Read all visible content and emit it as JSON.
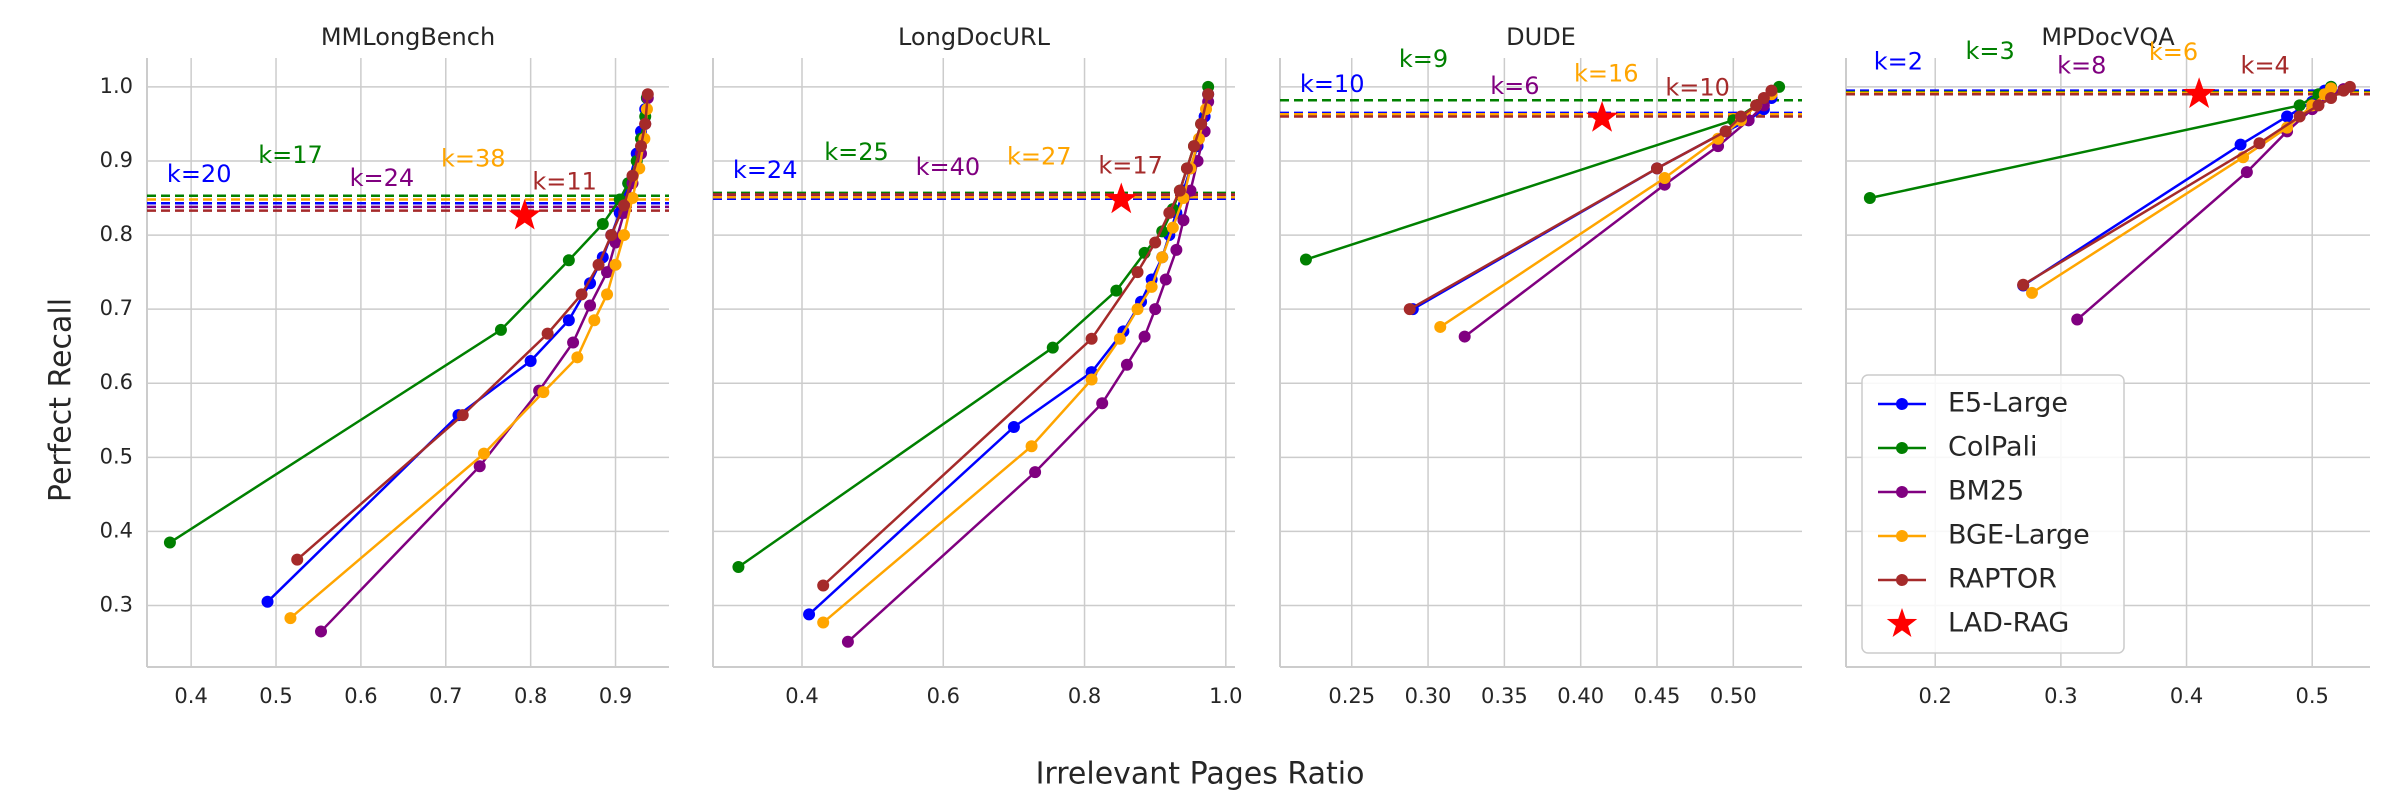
{
  "xlabel": "Irrelevant Pages Ratio",
  "ylabel": "Perfect Recall",
  "chart_data": [
    {
      "type": "line",
      "title": "MMLongBench",
      "xlim": [
        0.348,
        0.963
      ],
      "xticks": [
        0.4,
        0.5,
        0.6,
        0.7,
        0.8,
        0.9
      ],
      "ylim": [
        0.217,
        1.039
      ],
      "yticks": [
        0.3,
        0.4,
        0.5,
        0.6,
        0.7,
        0.8,
        0.9,
        {
          "value": 1,
          "label": "1.0"
        }
      ],
      "grid": true,
      "series": [
        {
          "name": "E5-Large",
          "color": "#0000ff",
          "threshold": 0.843,
          "k_label": "k=20",
          "x": [
            0.49,
            0.715,
            0.8,
            0.845,
            0.87,
            0.885,
            0.895,
            0.905,
            0.915,
            0.925,
            0.93,
            0.935,
            0.937
          ],
          "values": [
            0.305,
            0.557,
            0.63,
            0.685,
            0.735,
            0.77,
            0.8,
            0.83,
            0.87,
            0.91,
            0.94,
            0.97,
            0.985
          ]
        },
        {
          "name": "ColPali",
          "color": "#008000",
          "threshold": 0.853,
          "k_label": "k=17",
          "x": [
            0.375,
            0.765,
            0.845,
            0.885,
            0.905,
            0.915,
            0.925,
            0.93,
            0.935,
            0.937
          ],
          "values": [
            0.385,
            0.672,
            0.766,
            0.815,
            0.848,
            0.87,
            0.9,
            0.93,
            0.96,
            0.985
          ]
        },
        {
          "name": "BM25",
          "color": "#800080",
          "threshold": 0.838,
          "k_label": "k=24",
          "x": [
            0.553,
            0.74,
            0.81,
            0.85,
            0.87,
            0.89,
            0.9,
            0.91,
            0.92,
            0.93,
            0.935,
            0.938
          ],
          "values": [
            0.265,
            0.488,
            0.59,
            0.655,
            0.705,
            0.75,
            0.79,
            0.83,
            0.87,
            0.91,
            0.95,
            0.985
          ]
        },
        {
          "name": "BGE-Large",
          "color": "#ffa500",
          "threshold": 0.848,
          "k_label": "k=38",
          "x": [
            0.517,
            0.745,
            0.815,
            0.855,
            0.875,
            0.89,
            0.9,
            0.91,
            0.92,
            0.928,
            0.934,
            0.937
          ],
          "values": [
            0.283,
            0.505,
            0.588,
            0.635,
            0.685,
            0.72,
            0.76,
            0.8,
            0.85,
            0.89,
            0.93,
            0.97
          ]
        },
        {
          "name": "RAPTOR",
          "color": "#a52a2a",
          "threshold": 0.833,
          "k_label": "k=11",
          "x": [
            0.525,
            0.72,
            0.82,
            0.86,
            0.88,
            0.895,
            0.91,
            0.92,
            0.93,
            0.935,
            0.938
          ],
          "values": [
            0.362,
            0.557,
            0.667,
            0.72,
            0.76,
            0.8,
            0.84,
            0.88,
            0.92,
            0.95,
            0.99
          ]
        },
        {
          "name": "LAD-RAG",
          "color": "#ff0000",
          "marker": "star",
          "x": [
            0.793
          ],
          "values": [
            0.826
          ]
        }
      ]
    },
    {
      "type": "line",
      "title": "LongDocURL",
      "xlim": [
        0.274,
        1.013
      ],
      "xticks": [
        0.4,
        0.6,
        0.8,
        {
          "value": 1,
          "label": "1.0"
        }
      ],
      "ylim": [
        0.217,
        1.039
      ],
      "yticks": [
        0.3,
        0.4,
        0.5,
        0.6,
        0.7,
        0.8,
        0.9,
        {
          "value": 1,
          "label": "1.0"
        }
      ],
      "grid": true,
      "series": [
        {
          "name": "E5-Large",
          "color": "#0000ff",
          "threshold": 0.849,
          "k_label": "k=24",
          "x": [
            0.41,
            0.7,
            0.81,
            0.855,
            0.88,
            0.895,
            0.91,
            0.92,
            0.93,
            0.94,
            0.95,
            0.96,
            0.97,
            0.975
          ],
          "values": [
            0.288,
            0.541,
            0.615,
            0.67,
            0.71,
            0.74,
            0.77,
            0.8,
            0.83,
            0.86,
            0.89,
            0.92,
            0.96,
            0.99
          ]
        },
        {
          "name": "ColPali",
          "color": "#008000",
          "threshold": 0.857,
          "k_label": "k=25",
          "x": [
            0.31,
            0.755,
            0.845,
            0.885,
            0.91,
            0.925,
            0.935,
            0.945,
            0.955,
            0.965,
            0.975
          ],
          "values": [
            0.352,
            0.648,
            0.725,
            0.776,
            0.805,
            0.835,
            0.86,
            0.89,
            0.92,
            0.95,
            1.0
          ]
        },
        {
          "name": "BM25",
          "color": "#800080",
          "threshold": 0.853,
          "k_label": "k=40",
          "x": [
            0.465,
            0.73,
            0.825,
            0.86,
            0.885,
            0.9,
            0.915,
            0.93,
            0.94,
            0.95,
            0.96,
            0.97,
            0.975
          ],
          "values": [
            0.251,
            0.48,
            0.573,
            0.625,
            0.663,
            0.7,
            0.74,
            0.78,
            0.82,
            0.86,
            0.9,
            0.94,
            0.98
          ]
        },
        {
          "name": "BGE-Large",
          "color": "#ffa500",
          "threshold": 0.851,
          "k_label": "k=27",
          "x": [
            0.43,
            0.725,
            0.81,
            0.85,
            0.875,
            0.895,
            0.91,
            0.925,
            0.94,
            0.95,
            0.962,
            0.972
          ],
          "values": [
            0.277,
            0.515,
            0.605,
            0.66,
            0.7,
            0.73,
            0.77,
            0.81,
            0.85,
            0.89,
            0.93,
            0.97
          ]
        },
        {
          "name": "RAPTOR",
          "color": "#a52a2a",
          "threshold": 0.855,
          "k_label": "k=17",
          "x": [
            0.43,
            0.81,
            0.875,
            0.9,
            0.92,
            0.935,
            0.945,
            0.955,
            0.965,
            0.975
          ],
          "values": [
            0.327,
            0.66,
            0.75,
            0.79,
            0.83,
            0.86,
            0.89,
            0.92,
            0.95,
            0.99
          ]
        },
        {
          "name": "LAD-RAG",
          "color": "#ff0000",
          "marker": "star",
          "x": [
            0.852
          ],
          "values": [
            0.848
          ]
        }
      ]
    },
    {
      "type": "line",
      "title": "DUDE",
      "xlim": [
        0.203,
        0.545
      ],
      "xticks": [
        0.25,
        {
          "value": 0.3,
          "label": "0.30"
        },
        0.35,
        {
          "value": 0.4,
          "label": "0.40"
        },
        0.45,
        {
          "value": 0.5,
          "label": "0.50"
        }
      ],
      "ylim": [
        0.217,
        1.039
      ],
      "yticks": [
        0.3,
        0.4,
        0.5,
        0.6,
        0.7,
        0.8,
        0.9,
        {
          "value": 1,
          "label": "1.0"
        }
      ],
      "grid": true,
      "series": [
        {
          "name": "E5-Large",
          "color": "#0000ff",
          "threshold": 0.965,
          "k_label": "k=10",
          "x": [
            0.29,
            0.45,
            0.495,
            0.51,
            0.52,
            0.525
          ],
          "values": [
            0.7,
            0.89,
            0.94,
            0.955,
            0.97,
            0.985
          ]
        },
        {
          "name": "ColPali",
          "color": "#008000",
          "threshold": 0.982,
          "k_label": "k=9",
          "x": [
            0.22,
            0.5,
            0.515,
            0.53
          ],
          "values": [
            0.767,
            0.955,
            0.975,
            1.0
          ]
        },
        {
          "name": "BM25",
          "color": "#800080",
          "threshold": 0.962,
          "k_label": "k=6",
          "x": [
            0.324,
            0.455,
            0.49,
            0.51,
            0.52,
            0.525
          ],
          "values": [
            0.663,
            0.868,
            0.92,
            0.955,
            0.975,
            0.99
          ]
        },
        {
          "name": "BGE-Large",
          "color": "#ffa500",
          "threshold": 0.963,
          "k_label": "k=16",
          "x": [
            0.308,
            0.455,
            0.49,
            0.505,
            0.515,
            0.525
          ],
          "values": [
            0.676,
            0.877,
            0.93,
            0.955,
            0.975,
            0.99
          ]
        },
        {
          "name": "RAPTOR",
          "color": "#a52a2a",
          "threshold": 0.96,
          "k_label": "k=10",
          "x": [
            0.288,
            0.45,
            0.495,
            0.505,
            0.515,
            0.52,
            0.525
          ],
          "values": [
            0.7,
            0.89,
            0.94,
            0.96,
            0.975,
            0.985,
            0.995
          ]
        },
        {
          "name": "LAD-RAG",
          "color": "#ff0000",
          "marker": "star",
          "x": [
            0.414
          ],
          "values": [
            0.958
          ]
        }
      ]
    },
    {
      "type": "line",
      "title": "MPDocVQA",
      "legend": "lower left",
      "xlim": [
        0.129,
        0.546
      ],
      "xticks": [
        0.2,
        0.3,
        0.4,
        0.5
      ],
      "ylim": [
        0.217,
        1.039
      ],
      "yticks": [
        0.3,
        0.4,
        0.5,
        0.6,
        0.7,
        0.8,
        0.9,
        {
          "value": 1,
          "label": "1.0"
        }
      ],
      "grid": true,
      "series": [
        {
          "name": "E5-Large",
          "color": "#0000ff",
          "threshold": 0.995,
          "k_label": "k=2",
          "x": [
            0.27,
            0.443,
            0.48,
            0.5,
            0.51,
            0.515
          ],
          "values": [
            0.732,
            0.922,
            0.96,
            0.98,
            0.995,
            1.0
          ]
        },
        {
          "name": "ColPali",
          "color": "#008000",
          "threshold": 0.993,
          "k_label": "k=3",
          "x": [
            0.148,
            0.49,
            0.505,
            0.515
          ],
          "values": [
            0.85,
            0.975,
            0.99,
            1.0
          ]
        },
        {
          "name": "BM25",
          "color": "#800080",
          "threshold": 0.99,
          "k_label": "k=8",
          "x": [
            0.313,
            0.448,
            0.48,
            0.5,
            0.515,
            0.525
          ],
          "values": [
            0.686,
            0.885,
            0.94,
            0.97,
            0.99,
            0.997
          ]
        },
        {
          "name": "BGE-Large",
          "color": "#ffa500",
          "threshold": 0.992,
          "k_label": "k=6",
          "x": [
            0.277,
            0.445,
            0.48,
            0.5,
            0.51,
            0.515
          ],
          "values": [
            0.722,
            0.905,
            0.945,
            0.975,
            0.99,
            0.998
          ]
        },
        {
          "name": "RAPTOR",
          "color": "#a52a2a",
          "threshold": 0.99,
          "k_label": "k=4",
          "x": [
            0.27,
            0.458,
            0.49,
            0.505,
            0.515,
            0.525,
            0.53
          ],
          "values": [
            0.733,
            0.924,
            0.96,
            0.975,
            0.985,
            0.995,
            1.0
          ]
        },
        {
          "name": "LAD-RAG",
          "color": "#ff0000",
          "marker": "star",
          "x": [
            0.41
          ],
          "values": [
            0.99
          ]
        }
      ]
    }
  ]
}
